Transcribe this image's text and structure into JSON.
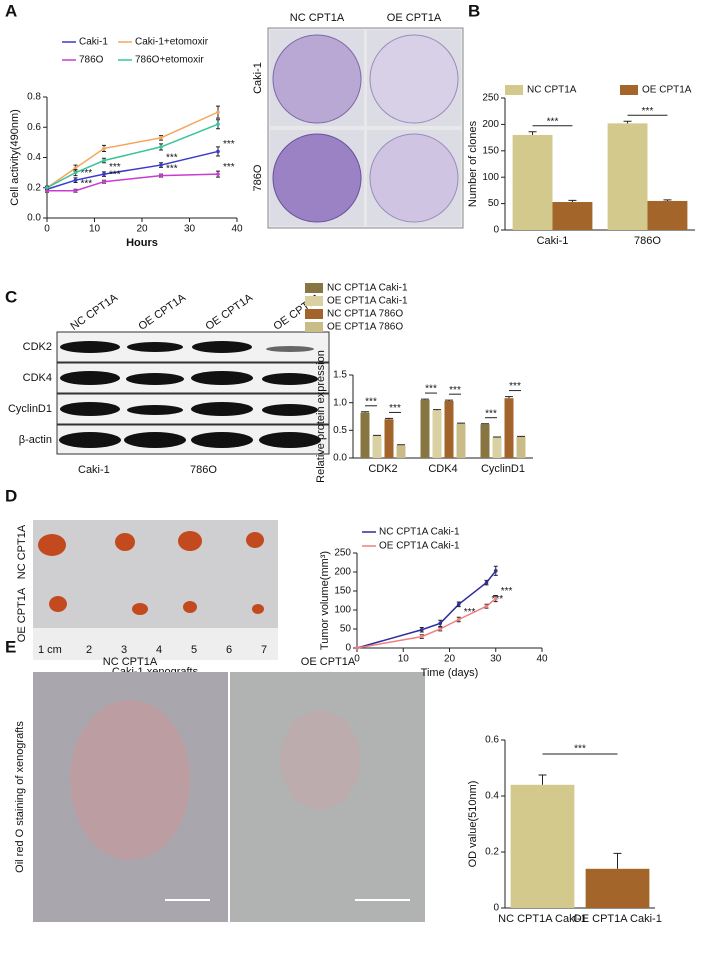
{
  "chart_data": [
    {
      "type": "line",
      "panel": "A",
      "x": [
        0,
        6,
        12,
        24,
        36
      ],
      "series": [
        {
          "name": "Caki-1",
          "color": "#3a3acb",
          "values": [
            0.19,
            0.25,
            0.29,
            0.35,
            0.44
          ],
          "errors": [
            0.01,
            0.015,
            0.015,
            0.015,
            0.03
          ]
        },
        {
          "name": "Caki-1+etomoxir",
          "color": "#f5a55a",
          "values": [
            0.2,
            0.33,
            0.46,
            0.53,
            0.7
          ],
          "errors": [
            0.01,
            0.02,
            0.02,
            0.015,
            0.04
          ]
        },
        {
          "name": "786O",
          "color": "#c83ccf",
          "values": [
            0.18,
            0.18,
            0.24,
            0.28,
            0.29
          ],
          "errors": [
            0.01,
            0.01,
            0.01,
            0.01,
            0.02
          ]
        },
        {
          "name": "786O+etomoxir",
          "color": "#36c59a",
          "values": [
            0.2,
            0.3,
            0.38,
            0.47,
            0.62
          ],
          "errors": [
            0.01,
            0.02,
            0.015,
            0.02,
            0.03
          ]
        }
      ],
      "xlim": [
        0,
        40
      ],
      "xticks": [
        0,
        10,
        20,
        30,
        40
      ],
      "ylim": [
        0,
        0.8
      ],
      "yticks": [
        {
          "value": 0,
          "label": "0.0"
        },
        0.2,
        0.4,
        0.6,
        0.8
      ],
      "xlabel": "Hours",
      "ylabel": "Cell activity(490nm)",
      "significance": "***"
    },
    {
      "type": "bar",
      "panel": "B",
      "categories": [
        "Caki-1",
        "786O"
      ],
      "series": [
        {
          "name": "NC CPT1A",
          "color": "#d4c98c",
          "values": [
            180,
            202
          ],
          "errors": [
            6,
            4
          ]
        },
        {
          "name": "OE CPT1A",
          "color": "#a4652b",
          "values": [
            53,
            55
          ],
          "errors": [
            3,
            2
          ]
        }
      ],
      "ylim": [
        0,
        250
      ],
      "yticks": [
        0,
        50,
        100,
        150,
        200,
        250
      ],
      "ylabel": "Number of clones",
      "significance": "***"
    },
    {
      "type": "bar",
      "panel": "C",
      "categories": [
        "CDK2",
        "CDK4",
        "CyclinD1"
      ],
      "series": [
        {
          "name": "NC CPT1A Caki-1",
          "color": "#877641",
          "values": [
            0.82,
            1.05,
            0.61
          ],
          "errors": [
            0.015,
            0.015,
            0.01
          ]
        },
        {
          "name": "OE CPT1A Caki-1",
          "color": "#d9d1a1",
          "values": [
            0.4,
            0.86,
            0.37
          ],
          "errors": [
            0.01,
            0.015,
            0.01
          ]
        },
        {
          "name": "NC CPT1A 786O",
          "color": "#a3642b",
          "values": [
            0.7,
            1.03,
            1.08
          ],
          "errors": [
            0.015,
            0.015,
            0.03
          ]
        },
        {
          "name": "OE CPT1A 786O",
          "color": "#c9bc87",
          "values": [
            0.23,
            0.62,
            0.38
          ],
          "errors": [
            0.01,
            0.01,
            0.01
          ]
        }
      ],
      "ylim": [
        0,
        1.5
      ],
      "yticks": [
        {
          "value": 0,
          "label": "0.0"
        },
        0.5,
        {
          "value": 1,
          "label": "1.0"
        },
        1.5
      ],
      "ylabel": "Relative protein expression",
      "significance": "***"
    },
    {
      "type": "line",
      "panel": "D",
      "x": [
        0,
        14,
        18,
        22,
        28,
        30
      ],
      "series": [
        {
          "name": "NC CPT1A Caki-1",
          "color": "#2e2e9c",
          "values": [
            0,
            48,
            65,
            115,
            172,
            203
          ],
          "errors": [
            0,
            6,
            8,
            6,
            6,
            12
          ]
        },
        {
          "name": "OE CPT1A Caki-1",
          "color": "#f07f7f",
          "values": [
            0,
            30,
            50,
            75,
            110,
            130
          ],
          "errors": [
            0,
            5,
            5,
            6,
            5,
            8
          ]
        }
      ],
      "xlim": [
        0,
        40
      ],
      "xticks": [
        0,
        10,
        20,
        30,
        40
      ],
      "ylim": [
        0,
        250
      ],
      "yticks": [
        0,
        50,
        100,
        150,
        200,
        250
      ],
      "xlabel": "Time (days)",
      "ylabel": "Tumor volume(mm³)",
      "significance": "***"
    },
    {
      "type": "bar",
      "panel": "E",
      "categories": [
        "NC CPT1A Caki-1",
        "OE CPT1A Caki-1"
      ],
      "values": [
        0.44,
        0.14
      ],
      "errors": [
        0.035,
        0.055
      ],
      "colors": [
        "#d4c98c",
        "#a4652b"
      ],
      "ylim": [
        0,
        0.6
      ],
      "yticks": [
        0,
        0.2,
        0.4,
        0.6
      ],
      "ylabel": "OD value(510nm)",
      "significance": "***"
    }
  ],
  "images": {
    "B": {
      "columns": [
        "NC CPT1A",
        "OE CPT1A"
      ],
      "rows": [
        "Caki-1",
        "786O"
      ]
    },
    "C": {
      "columns": [
        "NC CPT1A",
        "OE CPT1A",
        "OE CPT1A",
        "OE CPT1A"
      ],
      "rows": [
        "CDK2",
        "CDK4",
        "CyclinD1",
        "β-actin"
      ],
      "groups": [
        "Caki-1",
        "786O"
      ]
    },
    "D": {
      "rows": [
        "NC CPT1A",
        "OE CPT1A"
      ],
      "ruler": [
        "1 cm",
        "2",
        "3",
        "4",
        "5",
        "6",
        "7"
      ],
      "caption": "Caki-1 xenografts"
    },
    "E": {
      "columns": [
        "NC CPT1A",
        "OE CPT1A"
      ],
      "side_label": "Oil red O staining of  xenografts"
    }
  }
}
